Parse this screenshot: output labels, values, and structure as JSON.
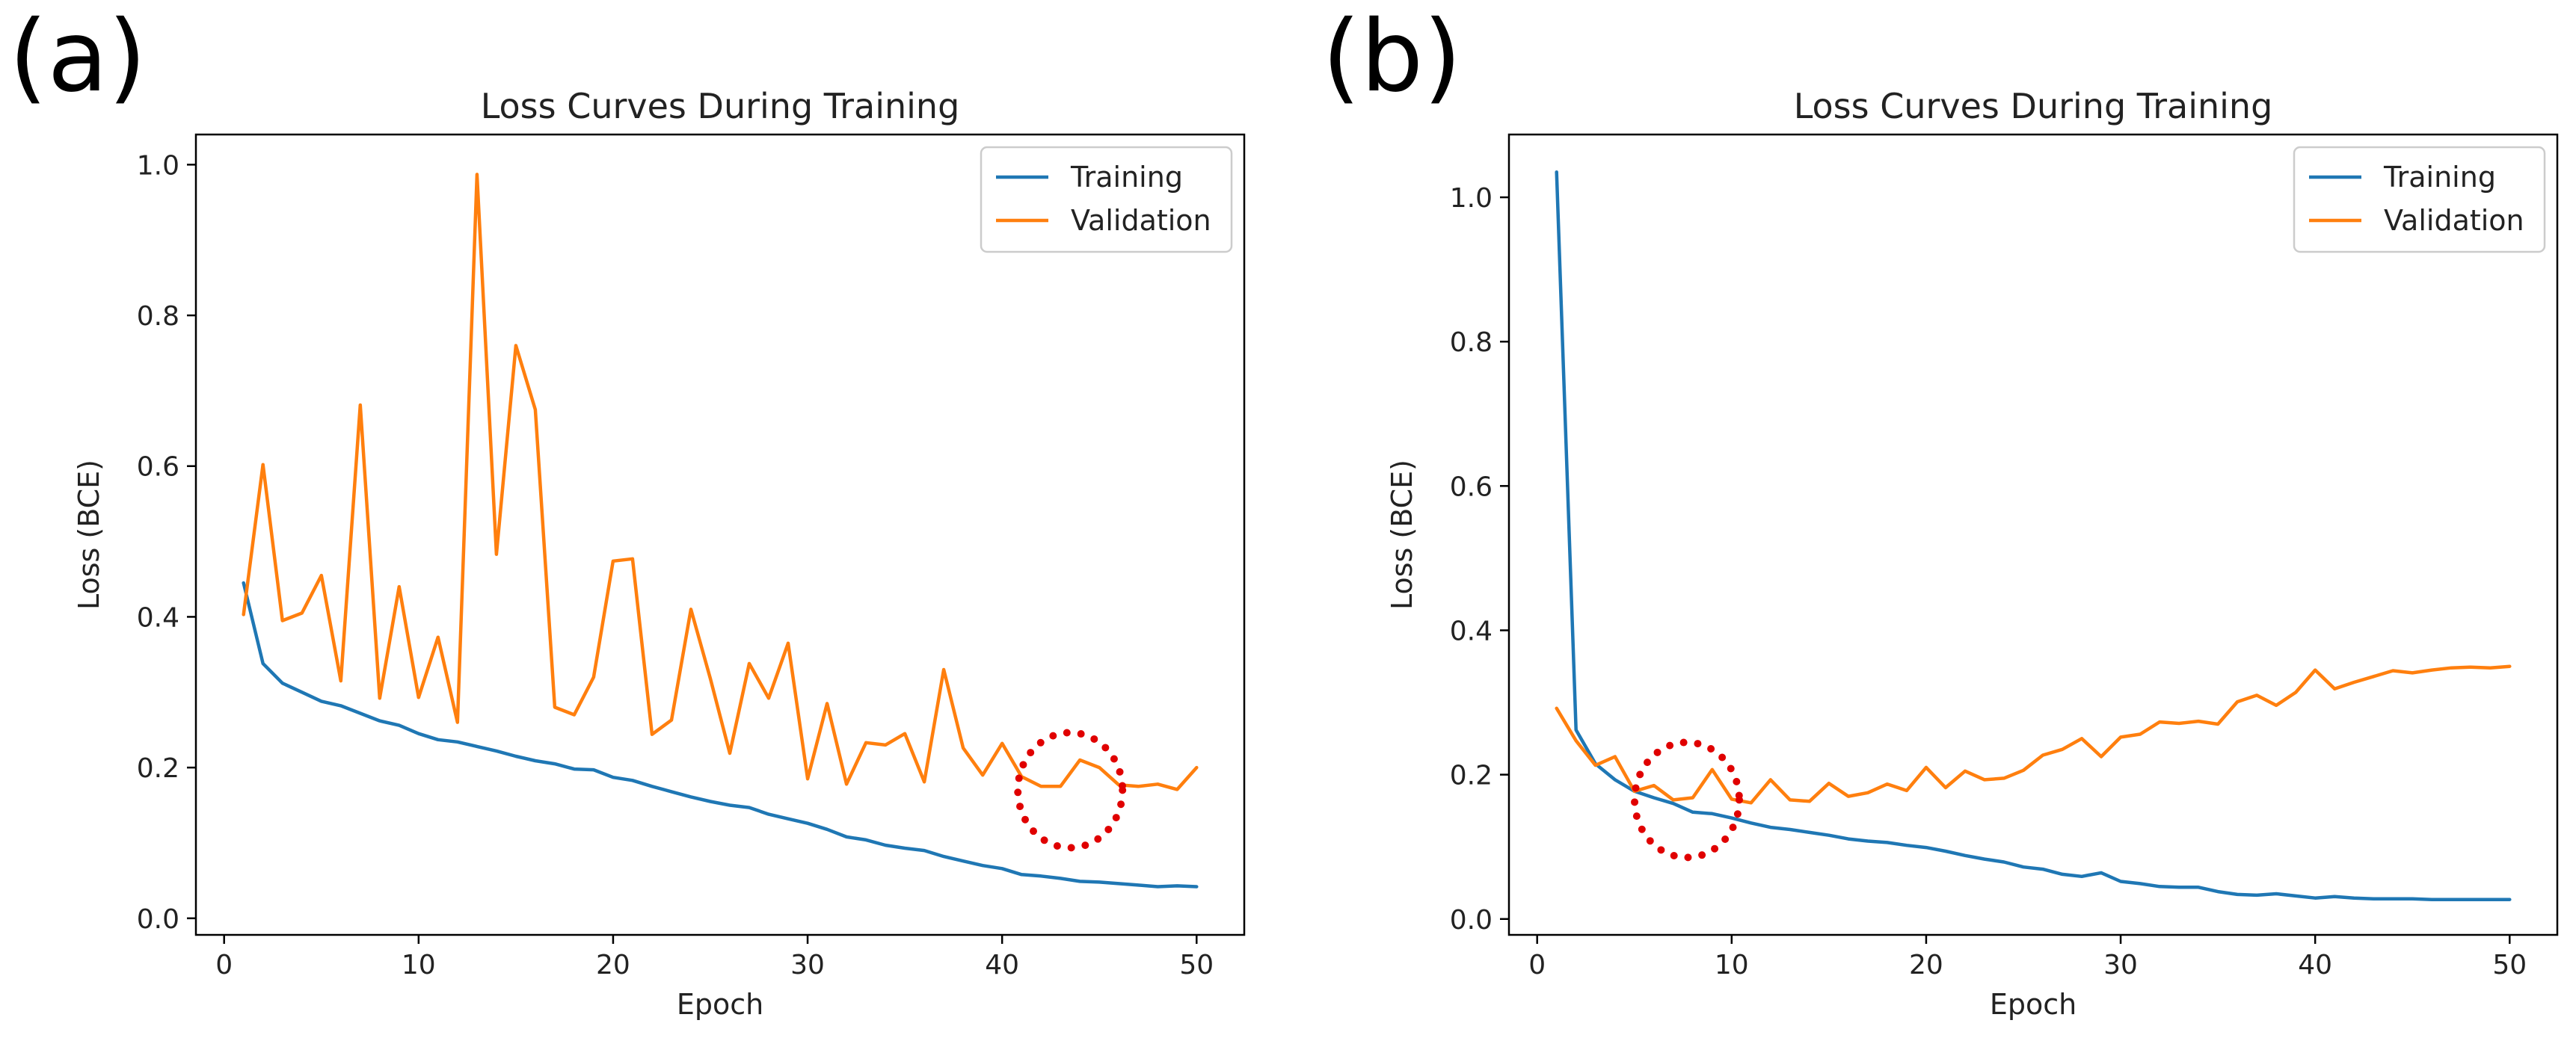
{
  "panels": [
    {
      "label": "(a)"
    },
    {
      "label": "(b)"
    }
  ],
  "colors": {
    "training": "#1f77b4",
    "validation": "#ff7f0e",
    "annotation": "#e00000"
  },
  "chart_data": [
    {
      "type": "line",
      "title": "Loss Curves During Training",
      "xlabel": "Epoch",
      "ylabel": "Loss (BCE)",
      "xlim": [
        -1.45,
        52.45
      ],
      "ylim": [
        -0.022,
        1.04
      ],
      "xticks": [
        0,
        10,
        20,
        30,
        40,
        50
      ],
      "yticks": [
        0.0,
        0.2,
        0.4,
        0.6,
        0.8,
        1.0
      ],
      "yticklabels": [
        "0.0",
        "0.2",
        "0.4",
        "0.6",
        "0.8",
        "1.0"
      ],
      "legend": [
        "Training",
        "Validation"
      ],
      "legend_position": "top-right",
      "annotation": {
        "shape": "dotted-circle",
        "center_x": 43.5,
        "center_y": 0.17
      },
      "series": [
        {
          "name": "Training",
          "x": [
            1,
            2,
            3,
            4,
            5,
            6,
            7,
            8,
            9,
            10,
            11,
            12,
            13,
            14,
            15,
            16,
            17,
            18,
            19,
            20,
            21,
            22,
            23,
            24,
            25,
            26,
            27,
            28,
            29,
            30,
            31,
            32,
            33,
            34,
            35,
            36,
            37,
            38,
            39,
            40,
            41,
            42,
            43,
            44,
            45,
            46,
            47,
            48,
            49,
            50
          ],
          "values": [
            0.445,
            0.338,
            0.312,
            0.3,
            0.288,
            0.282,
            0.272,
            0.262,
            0.256,
            0.245,
            0.237,
            0.234,
            0.228,
            0.222,
            0.215,
            0.209,
            0.205,
            0.198,
            0.197,
            0.187,
            0.183,
            0.175,
            0.168,
            0.161,
            0.155,
            0.15,
            0.147,
            0.138,
            0.132,
            0.126,
            0.118,
            0.108,
            0.104,
            0.097,
            0.093,
            0.09,
            0.082,
            0.076,
            0.07,
            0.066,
            0.058,
            0.056,
            0.053,
            0.049,
            0.048,
            0.046,
            0.044,
            0.042,
            0.043,
            0.042
          ]
        },
        {
          "name": "Validation",
          "x": [
            1,
            2,
            3,
            4,
            5,
            6,
            7,
            8,
            9,
            10,
            11,
            12,
            13,
            14,
            15,
            16,
            17,
            18,
            19,
            20,
            21,
            22,
            23,
            24,
            25,
            26,
            27,
            28,
            29,
            30,
            31,
            32,
            33,
            34,
            35,
            36,
            37,
            38,
            39,
            40,
            41,
            42,
            43,
            44,
            45,
            46,
            47,
            48,
            49,
            50
          ],
          "values": [
            0.403,
            0.602,
            0.395,
            0.405,
            0.455,
            0.315,
            0.681,
            0.292,
            0.44,
            0.293,
            0.373,
            0.26,
            0.987,
            0.483,
            0.76,
            0.675,
            0.28,
            0.27,
            0.32,
            0.474,
            0.477,
            0.244,
            0.263,
            0.41,
            0.318,
            0.219,
            0.338,
            0.292,
            0.365,
            0.185,
            0.285,
            0.178,
            0.233,
            0.23,
            0.245,
            0.181,
            0.33,
            0.226,
            0.19,
            0.232,
            0.188,
            0.175,
            0.175,
            0.21,
            0.2,
            0.177,
            0.175,
            0.178,
            0.171,
            0.2
          ]
        }
      ]
    },
    {
      "type": "line",
      "title": "Loss Curves During Training",
      "xlabel": "Epoch",
      "ylabel": "Loss (BCE)",
      "xlim": [
        -1.45,
        52.45
      ],
      "ylim": [
        -0.022,
        1.087
      ],
      "xticks": [
        0,
        10,
        20,
        30,
        40,
        50
      ],
      "yticks": [
        0.0,
        0.2,
        0.4,
        0.6,
        0.8,
        1.0
      ],
      "yticklabels": [
        "0.0",
        "0.2",
        "0.4",
        "0.6",
        "0.8",
        "1.0"
      ],
      "legend": [
        "Training",
        "Validation"
      ],
      "legend_position": "top-right",
      "annotation": {
        "shape": "dotted-circle",
        "center_x": 7.7,
        "center_y": 0.165
      },
      "series": [
        {
          "name": "Training",
          "x": [
            1,
            2,
            3,
            4,
            5,
            6,
            7,
            8,
            9,
            10,
            11,
            12,
            13,
            14,
            15,
            16,
            17,
            18,
            19,
            20,
            21,
            22,
            23,
            24,
            25,
            26,
            27,
            28,
            29,
            30,
            31,
            32,
            33,
            34,
            35,
            36,
            37,
            38,
            39,
            40,
            41,
            42,
            43,
            44,
            45,
            46,
            47,
            48,
            49,
            50
          ],
          "values": [
            1.035,
            0.262,
            0.215,
            0.193,
            0.177,
            0.168,
            0.16,
            0.148,
            0.146,
            0.14,
            0.133,
            0.127,
            0.124,
            0.12,
            0.116,
            0.111,
            0.108,
            0.106,
            0.102,
            0.099,
            0.094,
            0.088,
            0.083,
            0.079,
            0.072,
            0.069,
            0.062,
            0.059,
            0.064,
            0.052,
            0.049,
            0.045,
            0.044,
            0.044,
            0.038,
            0.034,
            0.033,
            0.035,
            0.032,
            0.029,
            0.031,
            0.029,
            0.028,
            0.028,
            0.028,
            0.027,
            0.027,
            0.027,
            0.027,
            0.027
          ]
        },
        {
          "name": "Validation",
          "x": [
            1,
            2,
            3,
            4,
            5,
            6,
            7,
            8,
            9,
            10,
            11,
            12,
            13,
            14,
            15,
            16,
            17,
            18,
            19,
            20,
            21,
            22,
            23,
            24,
            25,
            26,
            27,
            28,
            29,
            30,
            31,
            32,
            33,
            34,
            35,
            36,
            37,
            38,
            39,
            40,
            41,
            42,
            43,
            44,
            45,
            46,
            47,
            48,
            49,
            50
          ],
          "values": [
            0.292,
            0.247,
            0.213,
            0.225,
            0.177,
            0.185,
            0.165,
            0.168,
            0.207,
            0.166,
            0.161,
            0.193,
            0.165,
            0.163,
            0.188,
            0.17,
            0.175,
            0.187,
            0.178,
            0.21,
            0.182,
            0.205,
            0.193,
            0.195,
            0.206,
            0.227,
            0.235,
            0.25,
            0.225,
            0.252,
            0.256,
            0.273,
            0.271,
            0.274,
            0.27,
            0.301,
            0.31,
            0.296,
            0.314,
            0.345,
            0.319,
            0.328,
            0.336,
            0.344,
            0.341,
            0.345,
            0.348,
            0.349,
            0.348,
            0.35
          ]
        }
      ]
    }
  ]
}
